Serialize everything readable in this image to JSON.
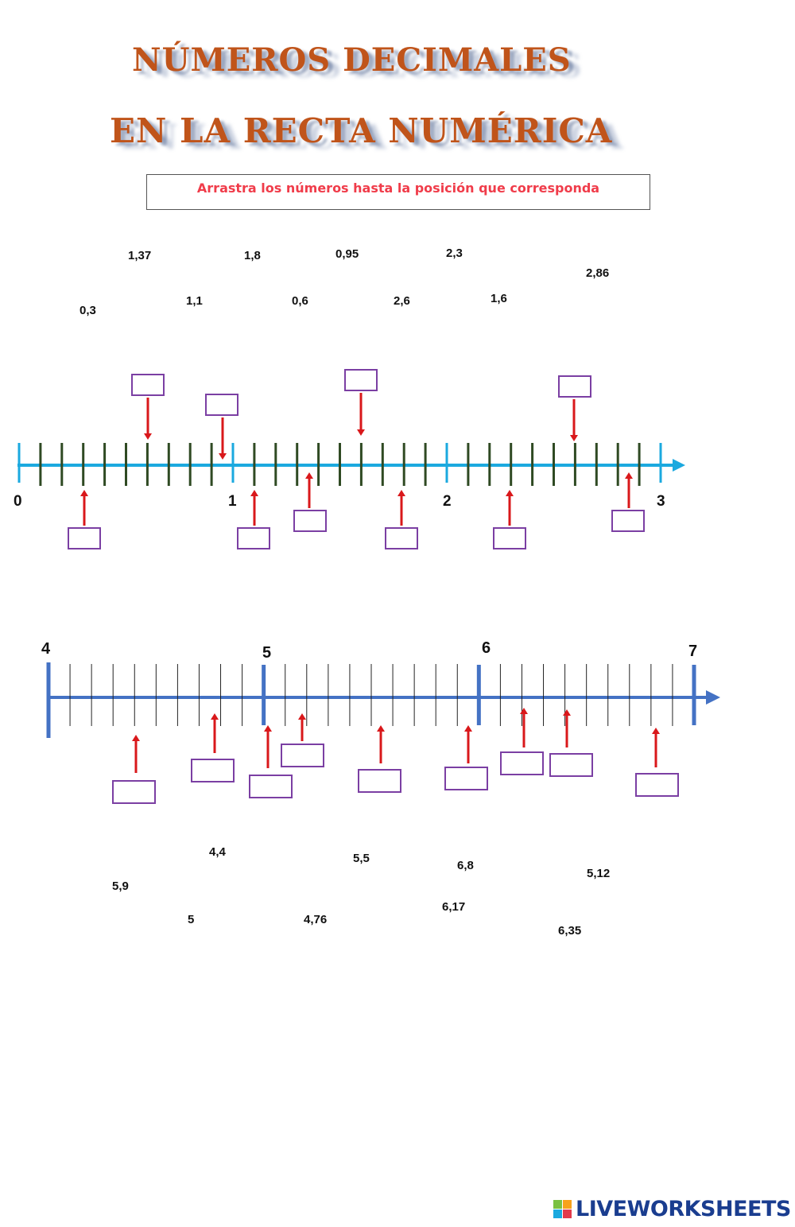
{
  "title": {
    "line1": "NÚMEROS DECIMALES",
    "line2": "EN LA RECTA NUMÉRICA"
  },
  "instruction": "Arrastra los números hasta la posición que corresponda",
  "line1": {
    "labels": [
      "0",
      "1",
      "2",
      "3"
    ],
    "chips": [
      "1,37",
      "1,8",
      "0,95",
      "2,3",
      "2,86",
      "0,3",
      "1,1",
      "0,6",
      "2,6",
      "1,6"
    ]
  },
  "line2": {
    "labels": [
      "4",
      "5",
      "6",
      "7"
    ],
    "chips": [
      "4,4",
      "5,5",
      "6,8",
      "5,9",
      "5,12",
      "6,17",
      "5",
      "4,76",
      "6,35"
    ]
  },
  "colors": {
    "title": "#c0541a",
    "instruction": "#f03c4a",
    "axis1": "#1ba9df",
    "axis1_ticks": "#2f4a23",
    "axis2": "#4472c4",
    "arrow": "#d9181b",
    "box_border": "#7b3fa3",
    "logo": "#1a3d8f"
  },
  "footer": {
    "logo_text": "LIVEWORKSHEETS",
    "logo_icon": "liveworksheets-logo-icon"
  }
}
